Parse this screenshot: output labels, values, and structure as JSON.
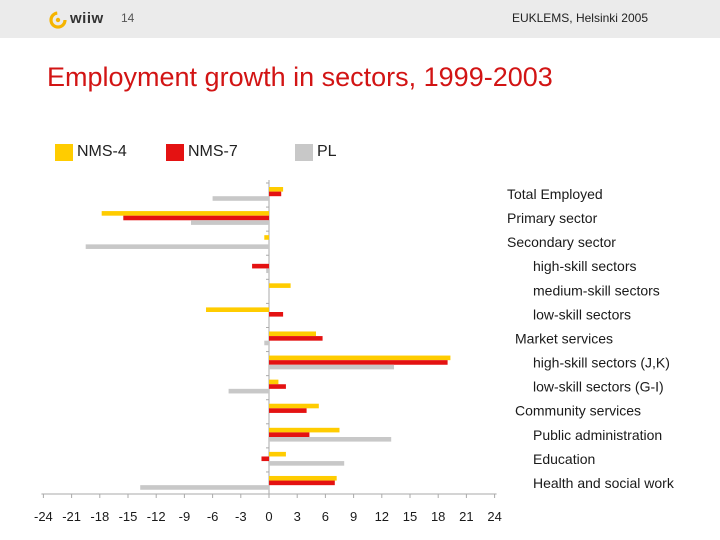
{
  "header": {
    "logo_text": "wiiw",
    "page_number": "14",
    "event": "EUKLEMS, Helsinki 2005"
  },
  "colors": {
    "nms4": "#ffcc00",
    "nms7": "#e41212",
    "pl": "#c8c8c8",
    "title": "#d21414",
    "logo_accent": "#f5b400"
  },
  "chart_data": {
    "type": "bar",
    "orientation": "horizontal",
    "title": "Employment growth in sectors, 1999-2003",
    "xlim": [
      -24,
      24
    ],
    "x_ticks": [
      -24,
      -21,
      -18,
      -15,
      -12,
      -9,
      -6,
      -3,
      0,
      3,
      6,
      9,
      12,
      15,
      18,
      21,
      24
    ],
    "legend_position": "top",
    "categories": [
      "Total Employed",
      "Primary sector",
      "Secondary sector",
      "high-skill sectors",
      "medium-skill sectors",
      "low-skill sectors",
      "Market services",
      "high-skill sectors (J,K)",
      "low-skill sectors (G-I)",
      "Community services",
      "Public administration",
      "Education",
      "Health and social work"
    ],
    "category_indent": [
      0,
      0,
      0,
      2,
      2,
      2,
      1,
      2,
      2,
      1,
      2,
      2,
      2
    ],
    "series": [
      {
        "name": "NMS-4",
        "values": [
          1.5,
          -17.8,
          -0.5,
          0,
          2.3,
          -6.7,
          5.0,
          19.3,
          1.0,
          5.3,
          7.5,
          1.8,
          7.2
        ]
      },
      {
        "name": "NMS-7",
        "values": [
          1.3,
          -15.5,
          0,
          -1.8,
          0,
          1.5,
          5.7,
          19.0,
          1.8,
          4.0,
          4.3,
          -0.8,
          7.0
        ]
      },
      {
        "name": "PL",
        "values": [
          -6.0,
          -8.3,
          -19.5,
          -0.3,
          0,
          0,
          -0.5,
          13.3,
          -4.3,
          0,
          13.0,
          8.0,
          -13.7
        ]
      }
    ]
  }
}
